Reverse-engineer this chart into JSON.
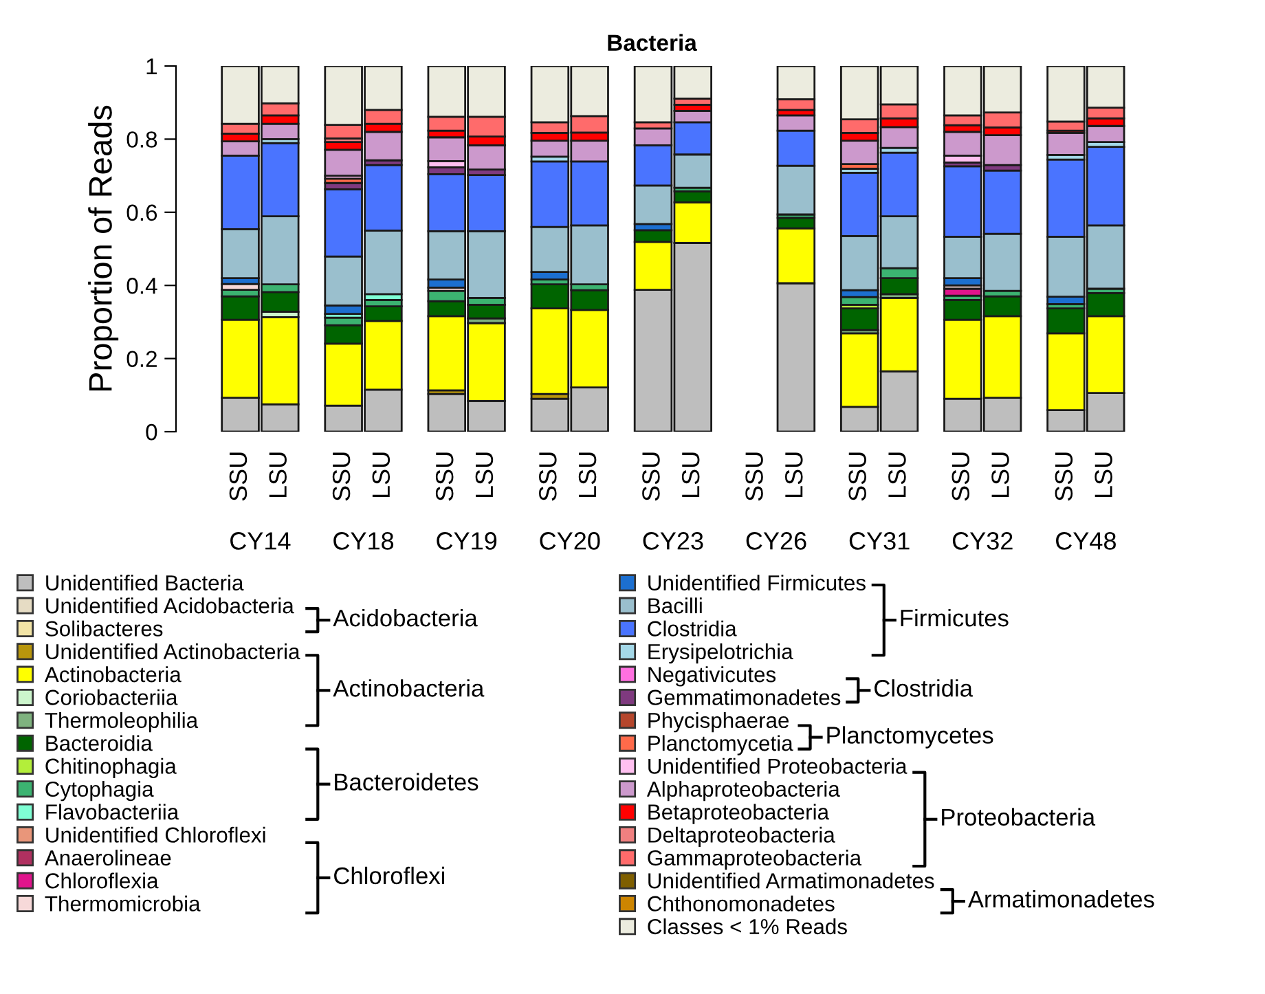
{
  "chart_data": {
    "type": "bar",
    "title": "Bacteria",
    "ylabel": "Proportion of Reads",
    "stacked": true,
    "legend": "bottom",
    "ylim": [
      0,
      1
    ],
    "yticks": [
      0,
      0.2,
      0.4,
      0.6,
      0.8,
      1
    ],
    "categories": [
      "SSU",
      "LSU",
      "SSU",
      "LSU",
      "SSU",
      "LSU",
      "SSU",
      "LSU",
      "SSU",
      "LSU",
      "SSU",
      "LSU",
      "SSU",
      "LSU",
      "SSU",
      "LSU",
      "SSU",
      "LSU"
    ],
    "annotations": [
      "CY14",
      "CY18",
      "CY19",
      "CY20",
      "CY23",
      "CY26",
      "CY31",
      "CY32",
      "CY48",
      "Acidobacteria",
      "Actinobacteria",
      "Bacteroidetes",
      "Chloroflexi",
      "Firmicutes",
      "Clostridia",
      "Planctomycetes",
      "Proteobacteria",
      "Armatimonadetes"
    ],
    "series": [
      {
        "name": "Unidentified Bacteria",
        "color": "#bebebe",
        "values": [
          0.093,
          0.075,
          0.071,
          0.115,
          0.103,
          0.084,
          0.09,
          0.121,
          0.388,
          0.516,
          0,
          0.406,
          0.068,
          0.165,
          0.09,
          0.093,
          0.059,
          0.106
        ]
      },
      {
        "name": "Unidentified Acidobacteria",
        "color": "#e6dcc4",
        "values": [
          0,
          0,
          0,
          0,
          0,
          0,
          0,
          0,
          0,
          0,
          0,
          0,
          0,
          0,
          0,
          0,
          0,
          0
        ]
      },
      {
        "name": "Solibacteres",
        "color": "#f2e4a6",
        "values": [
          0,
          0,
          0,
          0,
          0,
          0,
          0,
          0,
          0,
          0,
          0,
          0,
          0,
          0,
          0,
          0,
          0,
          0
        ]
      },
      {
        "name": "Unidentified Actinobacteria",
        "color": "#b8960c",
        "values": [
          0,
          0,
          0,
          0,
          0.01,
          0,
          0.013,
          0,
          0,
          0,
          0,
          0,
          0,
          0,
          0,
          0,
          0,
          0
        ]
      },
      {
        "name": "Actinobacteria",
        "color": "#ffff00",
        "values": [
          0.213,
          0.238,
          0.17,
          0.188,
          0.203,
          0.213,
          0.234,
          0.212,
          0.131,
          0.111,
          0,
          0.15,
          0.201,
          0.201,
          0.216,
          0.223,
          0.21,
          0.21
        ]
      },
      {
        "name": "Coriobacteriia",
        "color": "#ccf5cc",
        "values": [
          0,
          0.015,
          0,
          0,
          0,
          0,
          0,
          0,
          0,
          0,
          0,
          0,
          0,
          0,
          0,
          0,
          0,
          0
        ]
      },
      {
        "name": "Thermoleophilia",
        "color": "#7fb27f",
        "values": [
          0,
          0,
          0,
          0,
          0,
          0.013,
          0,
          0,
          0,
          0,
          0,
          0,
          0.009,
          0.01,
          0,
          0,
          0,
          0
        ]
      },
      {
        "name": "Bacteroidia",
        "color": "#006400",
        "values": [
          0.064,
          0.054,
          0.05,
          0.04,
          0.041,
          0.037,
          0.066,
          0.054,
          0.032,
          0.03,
          0,
          0.029,
          0.059,
          0.044,
          0.054,
          0.054,
          0.068,
          0.063
        ]
      },
      {
        "name": "Chitinophagia",
        "color": "#b3ee3a",
        "values": [
          0,
          0,
          0,
          0,
          0,
          0,
          0,
          0,
          0,
          0,
          0,
          0,
          0.01,
          0,
          0,
          0,
          0,
          0
        ]
      },
      {
        "name": "Cytophagia",
        "color": "#3cb371",
        "values": [
          0.018,
          0.021,
          0.021,
          0.017,
          0.028,
          0.019,
          0.013,
          0.016,
          0,
          0.01,
          0,
          0.009,
          0.021,
          0.027,
          0.012,
          0.015,
          0.012,
          0.012
        ]
      },
      {
        "name": "Flavobacteriia",
        "color": "#7fffd4",
        "values": [
          0,
          0,
          0.01,
          0.016,
          0,
          0,
          0,
          0,
          0,
          0,
          0,
          0,
          0,
          0,
          0,
          0,
          0,
          0
        ]
      },
      {
        "name": "Unidentified Chloroflexi",
        "color": "#e9967a",
        "values": [
          0,
          0,
          0,
          0,
          0,
          0,
          0,
          0,
          0,
          0,
          0,
          0,
          0,
          0,
          0,
          0,
          0,
          0
        ]
      },
      {
        "name": "Anaerolineae",
        "color": "#b03060",
        "values": [
          0,
          0,
          0,
          0,
          0,
          0,
          0,
          0,
          0,
          0,
          0,
          0,
          0,
          0,
          0,
          0,
          0,
          0
        ]
      },
      {
        "name": "Chloroflexia",
        "color": "#e0148c",
        "values": [
          0,
          0,
          0,
          0,
          0,
          0,
          0,
          0,
          0,
          0,
          0,
          0,
          0,
          0,
          0.019,
          0,
          0,
          0
        ]
      },
      {
        "name": "Thermomicrobia",
        "color": "#f7d9d9",
        "values": [
          0.016,
          0,
          0,
          0,
          0.009,
          0,
          0,
          0,
          0,
          0,
          0,
          0,
          0,
          0,
          0.009,
          0,
          0,
          0
        ]
      },
      {
        "name": "Unidentified Firmicutes",
        "color": "#1c6fd0",
        "values": [
          0.016,
          0,
          0.023,
          0,
          0.022,
          0,
          0.021,
          0,
          0.017,
          0,
          0,
          0,
          0.019,
          0,
          0.02,
          0,
          0.02,
          0
        ]
      },
      {
        "name": "Bacilli",
        "color": "#9abfcd",
        "values": [
          0.134,
          0.186,
          0.134,
          0.174,
          0.132,
          0.182,
          0.123,
          0.161,
          0.105,
          0.091,
          0,
          0.133,
          0.148,
          0.142,
          0.113,
          0.156,
          0.164,
          0.173
        ]
      },
      {
        "name": "Clostridia",
        "color": "#4a74ff",
        "values": [
          0.201,
          0.2,
          0.184,
          0.179,
          0.156,
          0.154,
          0.179,
          0.175,
          0.11,
          0.088,
          0,
          0.096,
          0.173,
          0.174,
          0.193,
          0.173,
          0.211,
          0.215
        ]
      },
      {
        "name": "Erysipelotrichia",
        "color": "#a4d8e8",
        "values": [
          0,
          0.011,
          0,
          0,
          0,
          0,
          0.013,
          0,
          0,
          0,
          0,
          0,
          0.011,
          0.013,
          0,
          0,
          0.013,
          0.013
        ]
      },
      {
        "name": "Negativicutes",
        "color": "#ff70e0",
        "values": [
          0,
          0,
          0,
          0,
          0,
          0,
          0,
          0,
          0,
          0,
          0,
          0,
          0,
          0,
          0,
          0,
          0,
          0
        ]
      },
      {
        "name": "Gemmatimonadetes",
        "color": "#7f3a7f",
        "values": [
          0,
          0,
          0.017,
          0.013,
          0.019,
          0.015,
          0,
          0,
          0,
          0,
          0,
          0,
          0,
          0,
          0.01,
          0.015,
          0,
          0
        ]
      },
      {
        "name": "Phycisphaerae",
        "color": "#b5462c",
        "values": [
          0,
          0,
          0,
          0,
          0,
          0,
          0,
          0,
          0,
          0,
          0,
          0,
          0,
          0,
          0,
          0,
          0,
          0
        ]
      },
      {
        "name": "Planctomycetia",
        "color": "#ff6a4a",
        "values": [
          0,
          0,
          0.012,
          0,
          0,
          0,
          0,
          0,
          0,
          0,
          0,
          0,
          0.013,
          0,
          0,
          0,
          0,
          0
        ]
      },
      {
        "name": "Unidentified Proteobacteria",
        "color": "#ffc0f0",
        "values": [
          0,
          0,
          0.008,
          0,
          0.017,
          0,
          0,
          0,
          0,
          0,
          0,
          0,
          0,
          0,
          0.019,
          0,
          0,
          0
        ]
      },
      {
        "name": "Alphaproteobacteria",
        "color": "#cc99cc",
        "values": [
          0.039,
          0.042,
          0.071,
          0.078,
          0.065,
          0.066,
          0.044,
          0.057,
          0.046,
          0.031,
          0,
          0.042,
          0.064,
          0.057,
          0.065,
          0.082,
          0.06,
          0.044
        ]
      },
      {
        "name": "Betaproteobacteria",
        "color": "#ff0000",
        "values": [
          0.021,
          0.023,
          0.021,
          0.022,
          0.018,
          0.024,
          0.021,
          0.022,
          0,
          0.017,
          0,
          0.015,
          0.021,
          0.024,
          0.018,
          0.021,
          0.006,
          0.021
        ]
      },
      {
        "name": "Deltaproteobacteria",
        "color": "#f08080",
        "values": [
          0,
          0,
          0.01,
          0,
          0,
          0,
          0,
          0,
          0,
          0,
          0,
          0,
          0,
          0,
          0,
          0,
          0,
          0
        ]
      },
      {
        "name": "Gammaproteobacteria",
        "color": "#ff6b6b",
        "values": [
          0.027,
          0.033,
          0.037,
          0.038,
          0.038,
          0.054,
          0.029,
          0.045,
          0.017,
          0.017,
          0,
          0.029,
          0.037,
          0.038,
          0.027,
          0.041,
          0.025,
          0.029
        ]
      },
      {
        "name": "Unidentified Armatimonadetes",
        "color": "#7f5f00",
        "values": [
          0,
          0,
          0,
          0,
          0,
          0,
          0,
          0,
          0,
          0,
          0,
          0,
          0,
          0,
          0,
          0,
          0,
          0
        ]
      },
      {
        "name": "Chthonomonadetes",
        "color": "#cd8500",
        "values": [
          0,
          0,
          0,
          0,
          0,
          0,
          0,
          0,
          0,
          0,
          0,
          0,
          0,
          0,
          0,
          0,
          0,
          0
        ]
      },
      {
        "name": "Classes < 1% Reads",
        "color": "#ececdf",
        "values": [
          0.158,
          0.102,
          0.161,
          0.12,
          0.139,
          0.139,
          0.154,
          0.137,
          0.154,
          0.089,
          0,
          0.091,
          0.146,
          0.105,
          0.135,
          0.127,
          0.152,
          0.114
        ]
      }
    ]
  }
}
